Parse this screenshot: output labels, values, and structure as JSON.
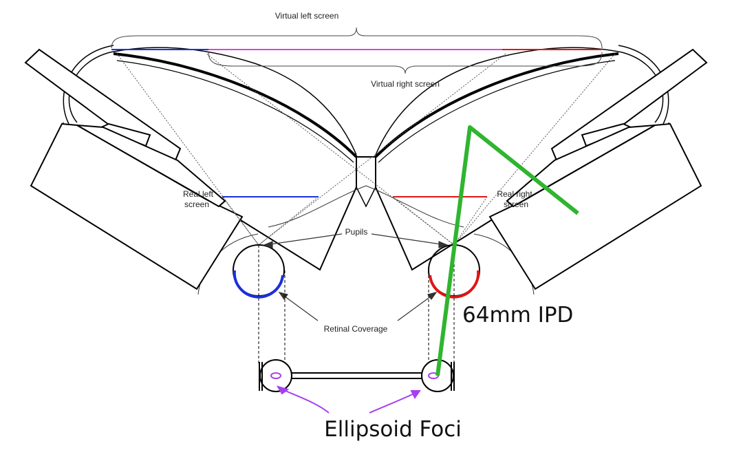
{
  "labels": {
    "virtual_left_screen": "Virtual left screen",
    "virtual_right_screen": "Virtual right screen",
    "real_left_screen_line1": "Real left",
    "real_left_screen_line2": "screen",
    "real_right_screen_line1": "Real right",
    "real_right_screen_line2": "screen",
    "pupils": "Pupils",
    "retinal_coverage": "Retinal Coverage",
    "ipd": "64mm IPD",
    "ellipsoid_foci": "Ellipsoid Foci"
  },
  "colors": {
    "outline": "#000000",
    "left_eye": "#1a2fe0",
    "right_eye": "#e01414",
    "overlap": "#e040e0",
    "ipd_marker": "#2fb52f",
    "foci_marker": "#a63ff0"
  }
}
